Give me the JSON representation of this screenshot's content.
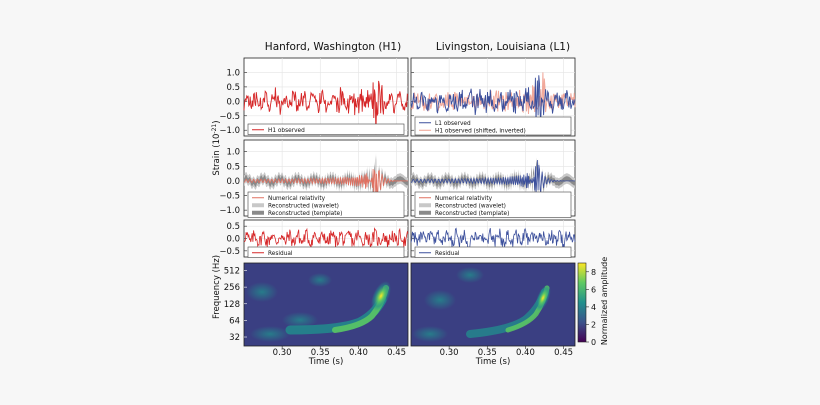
{
  "chart_data": {
    "type": "line",
    "columns": [
      {
        "title": "Hanford, Washington (H1)"
      },
      {
        "title": "Livingston, Louisiana (L1)"
      }
    ],
    "ylabel_strain": "Strain (10",
    "ylabel_strain_exp": "-21",
    "ylabel_strain_close": ")",
    "xlabel": "Time (s)",
    "x_ticks": [
      "0.30",
      "0.35",
      "0.40",
      "0.45"
    ],
    "x_tick_values": [
      0.3,
      0.35,
      0.4,
      0.45
    ],
    "xlim": [
      0.25,
      0.465
    ],
    "rows": [
      {
        "id": "observed",
        "ylim": [
          -1.2,
          1.5
        ],
        "yticks": [
          "1.0",
          "0.5",
          "0.0",
          "−0.5",
          "−1.0"
        ],
        "ytick_values": [
          1.0,
          0.5,
          0.0,
          -0.5,
          -1.0
        ]
      },
      {
        "id": "reconstructed",
        "ylim": [
          -1.2,
          1.4
        ],
        "yticks": [
          "1.0",
          "0.5",
          "0.0",
          "−0.5",
          "−1.0"
        ],
        "ytick_values": [
          1.0,
          0.5,
          0.0,
          -0.5,
          -1.0
        ]
      },
      {
        "id": "residual",
        "ylim": [
          -0.75,
          0.75
        ],
        "yticks": [
          "0.5",
          "0.0",
          "−0.5"
        ],
        "ytick_values": [
          0.5,
          0.0,
          -0.5
        ]
      }
    ],
    "legends": {
      "h1_observed": [
        "H1 observed"
      ],
      "l1_observed": [
        "L1 observed",
        "H1 observed (shifted, inverted)"
      ],
      "reconstruction": [
        "Numerical relativity",
        "Reconstructed (wavelet)",
        "Reconstructed (template)"
      ],
      "residual": [
        "Residual"
      ]
    },
    "spectrogram": {
      "ylabel": "Frequency (Hz)",
      "yticks": [
        "512",
        "256",
        "128",
        "64",
        "32"
      ],
      "ytick_values": [
        512,
        256,
        128,
        64,
        32
      ],
      "ylim": [
        22,
        700
      ],
      "yscale": "log",
      "colorbar_label": "Normalized amplitude",
      "colorbar_ticks": [
        "8",
        "6",
        "4",
        "2",
        "0"
      ],
      "colorbar_tick_values": [
        8,
        6,
        4,
        2,
        0
      ],
      "colorbar_range": [
        0,
        9
      ],
      "chirp_track": {
        "t": [
          0.27,
          0.31,
          0.35,
          0.38,
          0.4,
          0.41,
          0.42,
          0.425
        ],
        "f": [
          40,
          45,
          55,
          70,
          95,
          130,
          200,
          260
        ]
      }
    },
    "colors": {
      "h1": "#d62728",
      "l1": "#3b4f9c",
      "h1_shifted": "#f0a090",
      "nr": "#e07060",
      "wavelet": "#c8c8c8",
      "template": "#8a8a8a"
    }
  }
}
